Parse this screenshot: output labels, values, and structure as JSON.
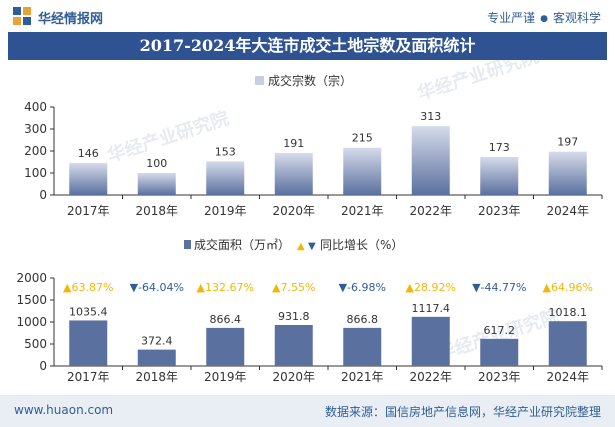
{
  "header": {
    "brand": "华经情报网",
    "tagline_left": "专业严谨",
    "tagline_right": "客观科学"
  },
  "title": "2017-2024年大连市成交土地宗数及面积统计",
  "watermark": "华经产业研究院",
  "footer": {
    "site": "www.huaon.com",
    "source": "数据来源：国信房地产信息网，华经产业研究院整理"
  },
  "colors": {
    "brand": "#2f5e96",
    "title_bg": "#2f5392",
    "bar_top": "#d6dbea",
    "bar_bottom": "#5a709f",
    "up": "#f2b705",
    "down": "#2f5e96"
  },
  "chart_data": [
    {
      "type": "bar",
      "legend": [
        "成交宗数（宗）"
      ],
      "categories": [
        "2017年",
        "2018年",
        "2019年",
        "2020年",
        "2021年",
        "2022年",
        "2023年",
        "2024年"
      ],
      "series": [
        {
          "name": "成交宗数（宗）",
          "values": [
            146,
            100,
            153,
            191,
            215,
            313,
            173,
            197
          ]
        }
      ],
      "ylim": [
        0,
        400
      ],
      "yticks": [
        0,
        100,
        200,
        300,
        400
      ],
      "legend_position": "top-center"
    },
    {
      "type": "bar",
      "legend": [
        "成交面积（万㎡）",
        "同比增长（%）"
      ],
      "categories": [
        "2017年",
        "2018年",
        "2019年",
        "2020年",
        "2021年",
        "2022年",
        "2023年",
        "2024年"
      ],
      "series": [
        {
          "name": "成交面积（万㎡）",
          "values": [
            1035.4,
            372.4,
            866.4,
            931.8,
            866.8,
            1117.4,
            617.2,
            1018.1
          ]
        },
        {
          "name": "同比增长（%）",
          "values": [
            63.87,
            -64.04,
            132.67,
            7.55,
            -6.98,
            28.92,
            -44.77,
            64.96
          ]
        }
      ],
      "growth_labels": [
        "63.87%",
        "-64.04%",
        "132.67%",
        "7.55%",
        "-6.98%",
        "28.92%",
        "-44.77%",
        "64.96%"
      ],
      "ylim": [
        0,
        2000
      ],
      "yticks": [
        0,
        500,
        1000,
        1500,
        2000
      ],
      "legend_position": "top-center"
    }
  ]
}
